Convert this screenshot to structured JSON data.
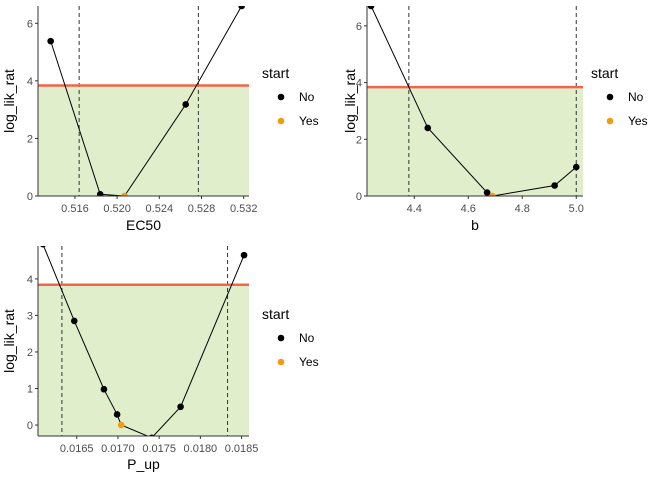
{
  "chart_data": [
    {
      "type": "line",
      "xlabel": "EC50",
      "ylabel": "log_lik_rat",
      "xlim": [
        0.5125,
        0.5325
      ],
      "ylim": [
        0,
        6.6
      ],
      "xticks": [
        "0.516",
        "0.520",
        "0.524",
        "0.528",
        "0.532"
      ],
      "yticks": [
        "0",
        "2",
        "4",
        "6"
      ],
      "threshold": 3.84,
      "ci_lines": [
        0.5164,
        0.5277
      ],
      "points": [
        {
          "x": 0.5137,
          "y": 5.38,
          "start": "No"
        },
        {
          "x": 0.5184,
          "y": 0.06,
          "start": "No"
        },
        {
          "x": 0.5207,
          "y": 0.0,
          "start": "Yes"
        },
        {
          "x": 0.5265,
          "y": 3.18,
          "start": "No"
        },
        {
          "x": 0.5318,
          "y": 6.6,
          "start": "No"
        }
      ],
      "legend": {
        "title": "start",
        "items": [
          {
            "label": "No",
            "color": "#000000"
          },
          {
            "label": "Yes",
            "color": "#f39c12"
          }
        ]
      }
    },
    {
      "type": "line",
      "xlabel": "b",
      "ylabel": "log_lik_rat",
      "xlim": [
        4.225,
        5.025
      ],
      "ylim": [
        0,
        6.7
      ],
      "xticks": [
        "4.4",
        "4.6",
        "4.8",
        "5.0"
      ],
      "yticks": [
        "0",
        "2",
        "4",
        "6"
      ],
      "threshold": 3.84,
      "ci_lines": [
        4.38,
        5.0
      ],
      "points": [
        {
          "x": 4.24,
          "y": 6.7,
          "start": "No"
        },
        {
          "x": 4.45,
          "y": 2.4,
          "start": "No"
        },
        {
          "x": 4.67,
          "y": 0.12,
          "start": "No"
        },
        {
          "x": 4.69,
          "y": 0.0,
          "start": "Yes"
        },
        {
          "x": 4.92,
          "y": 0.37,
          "start": "No"
        },
        {
          "x": 5.0,
          "y": 1.02,
          "start": "No"
        }
      ],
      "legend": {
        "title": "start",
        "items": [
          {
            "label": "No",
            "color": "#000000"
          },
          {
            "label": "Yes",
            "color": "#f39c12"
          }
        ]
      }
    },
    {
      "type": "line",
      "xlabel": "P_up",
      "ylabel": "log_lik_rat",
      "xlim": [
        0.01603,
        0.01859
      ],
      "ylim": [
        -0.3,
        4.9
      ],
      "xticks": [
        "0.0165",
        "0.0170",
        "0.0175",
        "0.0180",
        "0.0185"
      ],
      "yticks": [
        "0",
        "1",
        "2",
        "3",
        "4"
      ],
      "threshold": 3.84,
      "ci_lines": [
        0.01632,
        0.01833
      ],
      "points": [
        {
          "x": 0.01609,
          "y": 4.95,
          "start": "No"
        },
        {
          "x": 0.01647,
          "y": 2.85,
          "start": "No"
        },
        {
          "x": 0.01683,
          "y": 0.98,
          "start": "No"
        },
        {
          "x": 0.01699,
          "y": 0.29,
          "start": "No"
        },
        {
          "x": 0.01704,
          "y": 0.0,
          "start": "Yes"
        },
        {
          "x": 0.01741,
          "y": -0.35,
          "start": "No"
        },
        {
          "x": 0.01776,
          "y": 0.5,
          "start": "No"
        },
        {
          "x": 0.01853,
          "y": 4.65,
          "start": "No"
        }
      ],
      "legend": {
        "title": "start",
        "items": [
          {
            "label": "No",
            "color": "#000000"
          },
          {
            "label": "Yes",
            "color": "#f39c12"
          }
        ]
      }
    }
  ],
  "colors": {
    "band_fill": "#e0eecc",
    "threshold_line": "#f0664a",
    "point_no": "#000000",
    "point_yes": "#f39c12",
    "axis_text": "#4d4d4d"
  }
}
